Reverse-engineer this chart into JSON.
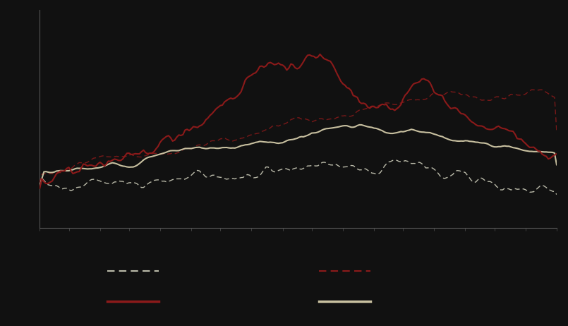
{
  "background_color": "#111111",
  "plot_bg_color": "#111111",
  "grid_color": "#ffffff",
  "n_points": 250,
  "line_dark_dashed_color": "#bbbbaa",
  "line_red_dashed_color": "#8b1a1a",
  "line_red_solid_color": "#8b1a1a",
  "line_cream_solid_color": "#c8c0a0",
  "ylim": [
    -0.08,
    0.52
  ],
  "xlim": [
    0,
    249
  ],
  "grid_alpha": 0.45,
  "grid_lw": 0.5
}
